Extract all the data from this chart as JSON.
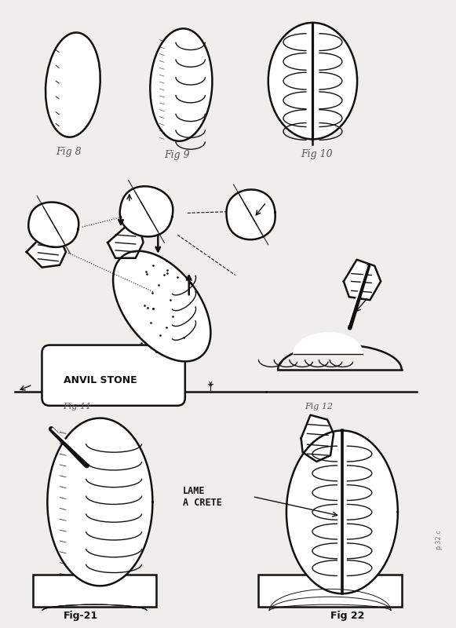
{
  "background_color": "#f0eeeb",
  "ink_color": "#111111",
  "figure_size": [
    5.81,
    8.0
  ],
  "dpi": 100,
  "labels": {
    "fig8": "Fig 8",
    "fig9": "Fig 9",
    "fig10": "Fig 10",
    "fig11": "Fig 11",
    "fig12": "Fig 12",
    "fig21": "Fig-21",
    "fig22": "Fig 22",
    "anvil_stone": "ANVIL STONE",
    "lame_a_crete": "LAME\nA CRETE"
  }
}
